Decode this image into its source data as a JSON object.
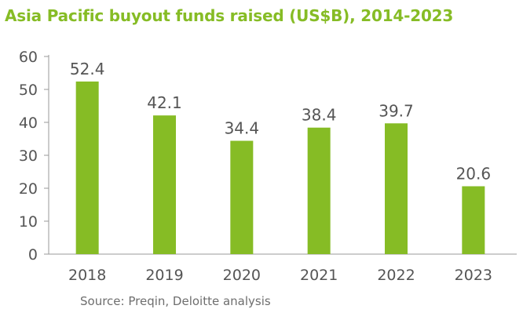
{
  "chart_data": {
    "type": "bar",
    "title": "Asia Pacific buyout funds raised (US$B), 2014-2023",
    "categories": [
      "2018",
      "2019",
      "2020",
      "2021",
      "2022",
      "2023"
    ],
    "values": [
      52.4,
      42.1,
      34.4,
      38.4,
      39.7,
      20.6
    ],
    "data_labels": [
      "52.4",
      "42.1",
      "34.4",
      "38.4",
      "39.7",
      "20.6"
    ],
    "y_ticks": [
      "0",
      "10",
      "20",
      "30",
      "40",
      "50",
      "60"
    ],
    "ylim": [
      0,
      60
    ],
    "xlabel": "",
    "ylabel": "",
    "grid": false,
    "legend": false,
    "bar_color": "#86bc25",
    "source": "Source: Preqin, Deloitte analysis"
  }
}
